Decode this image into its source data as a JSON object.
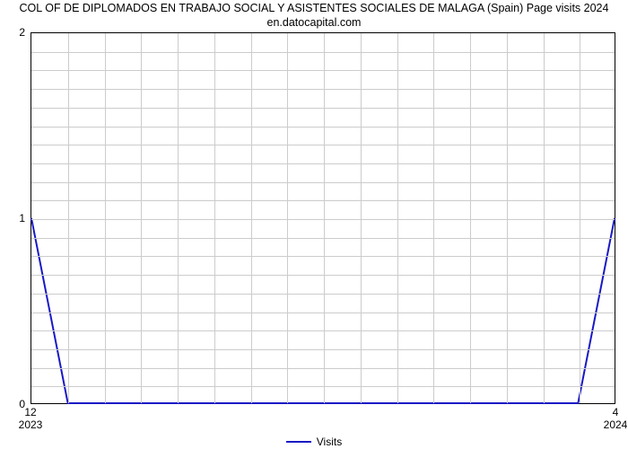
{
  "chart": {
    "type": "line",
    "title": "COL OF DE DIPLOMADOS EN TRABAJO SOCIAL Y ASISTENTES SOCIALES DE MALAGA (Spain) Page visits 2024 en.datocapital.com",
    "title_fontsize": 12.5,
    "background_color": "#ffffff",
    "axis_color": "#000000",
    "grid_color": "#cccccc",
    "x": {
      "min": 0,
      "max": 4,
      "grid_interval": 0.25,
      "ticks": [
        {
          "value": 0,
          "label": "12",
          "year": "2023"
        },
        {
          "value": 4,
          "label": "4",
          "year": "2024"
        }
      ]
    },
    "y": {
      "min": 0,
      "max": 2,
      "grid_interval": 0.1,
      "ticks": [
        {
          "value": 0,
          "label": "0"
        },
        {
          "value": 1,
          "label": "1"
        },
        {
          "value": 2,
          "label": "2"
        }
      ]
    },
    "series": [
      {
        "name": "Visits",
        "color": "#1919c5",
        "line_width": 2,
        "points": [
          {
            "x": 0.0,
            "y": 1.0
          },
          {
            "x": 0.25,
            "y": 0.0
          },
          {
            "x": 3.75,
            "y": 0.0
          },
          {
            "x": 4.0,
            "y": 1.0
          }
        ]
      }
    ],
    "legend": {
      "label": "Visits",
      "fontsize": 12
    }
  }
}
